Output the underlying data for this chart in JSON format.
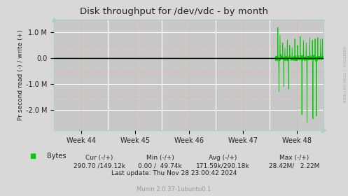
{
  "title": "Disk throughput for /dev/vdc - by month",
  "ylabel": "Pr second read (-) / write (+)",
  "xlabel_ticks": [
    "Week 44",
    "Week 45",
    "Week 46",
    "Week 47",
    "Week 48"
  ],
  "ylim": [
    -2800000,
    1500000
  ],
  "yticks": [
    -2000000,
    -1000000,
    0.0,
    1000000
  ],
  "ytick_labels": [
    "-2.0 M",
    "-1.0 M",
    "0.0",
    "1.0 M"
  ],
  "bg_color": "#d8d8d8",
  "plot_bg_color": "#c8c8c8",
  "grid_color_major": "#ffffff",
  "grid_color_minor": "#f0a0a0",
  "line_color": "#00cc00",
  "zero_line_color": "#000000",
  "legend_label": "Bytes",
  "legend_color": "#00cc00",
  "cur_text": "Cur (-/+)",
  "cur_val": "290.70 /149.12k",
  "min_text": "Min (-/+)",
  "min_val": "0.00 /  49.74k",
  "avg_text": "Avg (-/+)",
  "avg_val": "171.59k/290.18k",
  "max_text": "Max (-/+)",
  "max_val": "28.42M/   2.22M",
  "last_update": "Last update: Thu Nov 28 23:00:42 2024",
  "munin_text": "Munin 2.0.37-1ubuntu0.1",
  "rrdtool_text": "RRDTOOL / TOBI OETIKER"
}
